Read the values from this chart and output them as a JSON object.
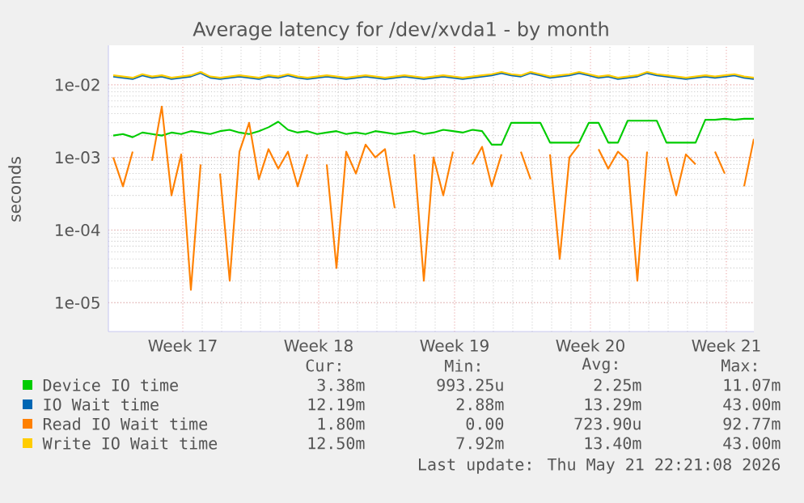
{
  "chart_data": {
    "type": "line",
    "title": "Average latency for /dev/xvda1 - by month",
    "ylabel": "seconds",
    "log": "y",
    "grid": true,
    "legend": "bottom",
    "xlim": [
      "2026-04-18T16:00",
      "2026-05-21T22:00"
    ],
    "xticks": [
      {
        "value": "2026-04-22T12:00",
        "label": "Week 17"
      },
      {
        "value": "2026-04-29T12:00",
        "label": "Week 18"
      },
      {
        "value": "2026-05-06T12:00",
        "label": "Week 19"
      },
      {
        "value": "2026-05-13T12:00",
        "label": "Week 20"
      },
      {
        "value": "2026-05-20T12:00",
        "label": "Week 21"
      }
    ],
    "ylim": [
      4e-06,
      0.035
    ],
    "yticks": [
      {
        "value": 1e-05,
        "label": "1e-05"
      },
      {
        "value": 0.0001,
        "label": "1e-04"
      },
      {
        "value": 0.001,
        "label": "1e-03"
      },
      {
        "value": 0.01,
        "label": "1e-02"
      }
    ],
    "x": [
      "2026-04-18T22:00",
      "2026-04-19T10:00",
      "2026-04-19T22:00",
      "2026-04-20T10:00",
      "2026-04-20T22:00",
      "2026-04-21T10:00",
      "2026-04-21T22:00",
      "2026-04-22T10:00",
      "2026-04-22T22:00",
      "2026-04-23T10:00",
      "2026-04-23T22:00",
      "2026-04-24T10:00",
      "2026-04-24T22:00",
      "2026-04-25T10:00",
      "2026-04-25T22:00",
      "2026-04-26T10:00",
      "2026-04-26T22:00",
      "2026-04-27T10:00",
      "2026-04-27T22:00",
      "2026-04-28T10:00",
      "2026-04-28T22:00",
      "2026-04-29T10:00",
      "2026-04-29T22:00",
      "2026-04-30T10:00",
      "2026-04-30T22:00",
      "2026-05-01T10:00",
      "2026-05-01T22:00",
      "2026-05-02T10:00",
      "2026-05-02T22:00",
      "2026-05-03T10:00",
      "2026-05-03T22:00",
      "2026-05-04T10:00",
      "2026-05-04T22:00",
      "2026-05-05T10:00",
      "2026-05-05T22:00",
      "2026-05-06T10:00",
      "2026-05-06T22:00",
      "2026-05-07T10:00",
      "2026-05-07T22:00",
      "2026-05-08T10:00",
      "2026-05-08T22:00",
      "2026-05-09T10:00",
      "2026-05-09T22:00",
      "2026-05-10T10:00",
      "2026-05-10T22:00",
      "2026-05-11T10:00",
      "2026-05-11T22:00",
      "2026-05-12T10:00",
      "2026-05-12T22:00",
      "2026-05-13T10:00",
      "2026-05-13T22:00",
      "2026-05-14T10:00",
      "2026-05-14T22:00",
      "2026-05-15T10:00",
      "2026-05-15T22:00",
      "2026-05-16T10:00",
      "2026-05-16T22:00",
      "2026-05-17T10:00",
      "2026-05-17T22:00",
      "2026-05-18T10:00",
      "2026-05-18T22:00",
      "2026-05-19T10:00",
      "2026-05-19T22:00",
      "2026-05-20T10:00",
      "2026-05-20T22:00",
      "2026-05-21T10:00",
      "2026-05-21T22:00"
    ],
    "series": [
      {
        "name": "Device IO time",
        "color": "#00cc00",
        "values": [
          0.002,
          0.0021,
          0.0019,
          0.0022,
          0.0021,
          0.002,
          0.0022,
          0.0021,
          0.0023,
          0.0022,
          0.0021,
          0.0023,
          0.0024,
          0.0022,
          0.0021,
          0.0023,
          0.0026,
          0.0031,
          0.0024,
          0.0022,
          0.0023,
          0.0021,
          0.0022,
          0.0023,
          0.0021,
          0.0022,
          0.0021,
          0.0023,
          0.0022,
          0.0021,
          0.0022,
          0.0023,
          0.0021,
          0.0022,
          0.0024,
          0.0023,
          0.0022,
          0.0024,
          0.0023,
          0.0015,
          0.0015,
          0.003,
          0.003,
          0.003,
          0.003,
          0.0016,
          0.0016,
          0.0016,
          0.0016,
          0.003,
          0.003,
          0.0016,
          0.0016,
          0.0032,
          0.0032,
          0.0032,
          0.0032,
          0.0016,
          0.0016,
          0.0016,
          0.0016,
          0.0033,
          0.0033,
          0.0034,
          0.0033,
          0.0034,
          0.0034
        ]
      },
      {
        "name": "IO Wait time",
        "color": "#0066b3",
        "values": [
          0.013,
          0.0125,
          0.012,
          0.0135,
          0.0125,
          0.013,
          0.012,
          0.0125,
          0.013,
          0.0145,
          0.0125,
          0.012,
          0.0125,
          0.013,
          0.0125,
          0.012,
          0.013,
          0.0125,
          0.0135,
          0.0125,
          0.012,
          0.0125,
          0.013,
          0.0125,
          0.012,
          0.0125,
          0.013,
          0.0125,
          0.012,
          0.0125,
          0.013,
          0.0125,
          0.012,
          0.0125,
          0.013,
          0.0125,
          0.012,
          0.0125,
          0.013,
          0.0135,
          0.0145,
          0.0135,
          0.013,
          0.0145,
          0.0135,
          0.0125,
          0.013,
          0.0135,
          0.0145,
          0.0135,
          0.0125,
          0.013,
          0.012,
          0.0125,
          0.013,
          0.0145,
          0.0135,
          0.013,
          0.0125,
          0.012,
          0.0125,
          0.013,
          0.0125,
          0.013,
          0.0135,
          0.0125,
          0.012
        ]
      },
      {
        "name": "Read IO Wait time",
        "color": "#ff8000",
        "values": [
          0.001,
          0.0004,
          0.0012,
          null,
          0.0009,
          0.005,
          0.0003,
          0.0011,
          1.5e-05,
          0.0008,
          null,
          0.0006,
          2e-05,
          0.0012,
          0.003,
          0.0005,
          0.0013,
          0.0007,
          0.0012,
          0.0004,
          0.0011,
          null,
          0.0008,
          3e-05,
          0.0012,
          0.0006,
          0.0015,
          0.001,
          0.0013,
          0.0002,
          null,
          0.0011,
          2e-05,
          0.001,
          0.0003,
          0.0012,
          null,
          0.0008,
          0.0014,
          0.0004,
          0.0011,
          null,
          0.0012,
          0.0005,
          null,
          0.0011,
          4e-05,
          0.001,
          0.0015,
          null,
          0.0013,
          0.0007,
          0.0012,
          0.0009,
          2e-05,
          0.0012,
          null,
          0.001,
          0.0003,
          0.0011,
          0.0008,
          null,
          0.0012,
          0.0006,
          null,
          0.0004,
          0.0018
        ]
      },
      {
        "name": "Write IO Wait time",
        "color": "#ffcc00",
        "values": [
          0.0135,
          0.013,
          0.0125,
          0.014,
          0.013,
          0.0135,
          0.0125,
          0.013,
          0.0135,
          0.015,
          0.013,
          0.0125,
          0.013,
          0.0135,
          0.013,
          0.0125,
          0.0135,
          0.013,
          0.014,
          0.013,
          0.0125,
          0.013,
          0.0135,
          0.013,
          0.0125,
          0.013,
          0.0135,
          0.013,
          0.0125,
          0.013,
          0.0135,
          0.013,
          0.0125,
          0.013,
          0.0135,
          0.013,
          0.0125,
          0.013,
          0.0135,
          0.014,
          0.015,
          0.014,
          0.0135,
          0.015,
          0.014,
          0.013,
          0.0135,
          0.014,
          0.015,
          0.014,
          0.013,
          0.0135,
          0.0125,
          0.013,
          0.0135,
          0.015,
          0.014,
          0.0135,
          0.013,
          0.0125,
          0.013,
          0.0135,
          0.013,
          0.0135,
          0.014,
          0.013,
          0.0125
        ]
      }
    ],
    "annotations": [
      "Cur:",
      "Min:",
      "Avg:",
      "Max:",
      "3.38m",
      "993.25u",
      "2.25m",
      "11.07m",
      "12.19m",
      "2.88m",
      "13.29m",
      "43.00m",
      "1.80m",
      "0.00",
      "723.90u",
      "92.77m",
      "12.50m",
      "7.92m",
      "13.40m",
      "43.00m",
      "Last update: Thu May 21 22:21:08 2026"
    ]
  }
}
